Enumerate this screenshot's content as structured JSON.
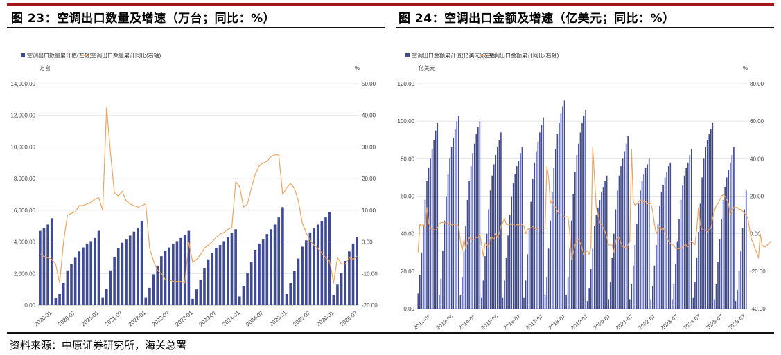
{
  "page": {
    "left_title": "图 23：空调出口数量及增速（万台；同比：%）",
    "right_title": "图 24：空调出口金额及增速（亿美元；同比：%）",
    "source": "资料来源：中原证券研究所，海关总署"
  },
  "colors": {
    "bar": "#3f4a96",
    "line": "#f0a35c",
    "rule": "#a3171b",
    "grid": "#e4e4e4"
  },
  "chart_data": [
    {
      "type": "bar",
      "legend": [
        "空调出口数量累计值(左轴)",
        "空调出口数量累计同比(右轴)"
      ],
      "left_unit": "万台",
      "right_unit": "%",
      "ylim": [
        0,
        14000
      ],
      "y2lim": [
        -20,
        50
      ],
      "left_ticks": [
        "14,000.00",
        "12,000.00",
        "10,000.00",
        "8,000.00",
        "6,000.00",
        "4,000.00",
        "2,000.00",
        "0.00"
      ],
      "right_ticks": [
        "50.00",
        "40.00",
        "30.00",
        "20.00",
        "10.00",
        "0.00",
        "-10.00",
        "-20.00"
      ],
      "x_tick_labels": [
        "2020-01",
        "2020-07",
        "2021-01",
        "2021-07",
        "2022-01",
        "2022-07",
        "2023-01",
        "2023-07",
        "2024-01",
        "2024-07",
        "2025-01",
        "2025-07",
        "2026-01",
        "2026-07"
      ],
      "series": [
        {
          "name": "空调出口数量累计值(左轴)",
          "type": "bar",
          "values": [
            4700,
            4900,
            5100,
            5500,
            450,
            700,
            1400,
            2200,
            2600,
            3000,
            3400,
            3650,
            3900,
            4050,
            4250,
            4700,
            500,
            1050,
            2200,
            3050,
            3600,
            3950,
            4150,
            4400,
            4650,
            4900,
            5300,
            500,
            1100,
            1950,
            2500,
            3100,
            3450,
            3650,
            3900,
            4050,
            4250,
            4450,
            4700,
            400,
            1000,
            1600,
            2350,
            2900,
            3300,
            3600,
            3800,
            4050,
            4300,
            4550,
            4800,
            550,
            1200,
            2050,
            2750,
            3500,
            3900,
            4150,
            4500,
            4800,
            5100,
            5550,
            6200,
            700,
            1400,
            2150,
            2950,
            3700,
            4100,
            4600,
            4850,
            5100,
            5300,
            5550,
            5900,
            650,
            1300,
            2050,
            2800,
            3400,
            3900,
            4300
          ]
        },
        {
          "name": "空调出口数量累计同比(右轴)",
          "type": "line",
          "values": [
            -4,
            -4.5,
            -5,
            -5.5,
            -7,
            -13,
            0,
            8.5,
            9,
            9.5,
            11.5,
            11.5,
            12,
            12.5,
            13.5,
            14,
            10,
            42.5,
            28,
            15.5,
            14.5,
            16,
            13,
            12,
            11.5,
            11,
            11.5,
            12,
            -2,
            -6,
            -9,
            -10,
            -12,
            -12,
            -12.5,
            -12.5,
            -12.5,
            -13,
            0,
            -6.5,
            -5.5,
            -4,
            -2,
            -1,
            0,
            1.5,
            2.5,
            3,
            4,
            4.5,
            19,
            17.5,
            11,
            12,
            17,
            21.5,
            24,
            25,
            25.5,
            27,
            27.5,
            27.5,
            15,
            17,
            18.5,
            17,
            13,
            6,
            3,
            0.5,
            -1,
            -2,
            -3.5,
            -5,
            -6,
            -13,
            -5,
            -7,
            -7,
            -5,
            -5.5,
            -4.5
          ]
        }
      ]
    },
    {
      "type": "bar",
      "legend": [
        "空调出口金额累计值(亿美元)(左轴)",
        "空调出口金额累计同比(右轴)"
      ],
      "left_unit": "亿美元",
      "right_unit": "%",
      "ylim": [
        0,
        120
      ],
      "y2lim": [
        -40,
        80
      ],
      "left_ticks": [
        "120.00",
        "100.00",
        "80.00",
        "60.00",
        "40.00",
        "20.00",
        "0.00"
      ],
      "right_ticks": [
        "80.00",
        "60.00",
        "40.00",
        "20.00",
        "0.00",
        "-20.00",
        "-40.00"
      ],
      "x_tick_labels": [
        "2012-06",
        "2013-06",
        "2014-06",
        "2015-06",
        "2016-07",
        "2017-07",
        "2018-07",
        "2019-07",
        "2020-07",
        "2021-07",
        "2022-07",
        "2023-07",
        "2024-07",
        "2025-07",
        "2026-07"
      ],
      "series": [
        {
          "name": "空调出口金额累计值(亿美元)(左轴)",
          "type": "bar",
          "values": [
            8,
            18,
            30,
            45,
            58,
            68,
            75,
            80,
            85,
            90,
            95,
            99,
            7,
            16,
            31,
            47,
            60,
            72,
            80,
            86,
            91,
            96,
            100,
            103,
            7,
            17,
            31,
            44,
            58,
            68,
            76,
            83,
            88,
            93,
            97,
            100,
            6,
            15,
            28,
            40,
            53,
            63,
            71,
            77,
            82,
            86,
            90,
            94,
            6,
            15,
            27,
            39,
            50,
            60,
            67,
            72,
            76,
            79,
            83,
            86,
            6,
            15,
            29,
            43,
            57,
            69,
            78,
            84,
            89,
            94,
            98,
            102,
            7,
            17,
            32,
            47,
            62,
            75,
            85,
            93,
            99,
            104,
            108,
            111,
            7,
            17,
            32,
            47,
            61,
            73,
            82,
            88,
            94,
            99,
            103,
            106,
            4,
            11,
            21,
            32,
            44,
            50,
            54,
            58,
            62,
            65,
            68,
            71,
            5,
            14,
            27,
            40,
            53,
            63,
            71,
            76,
            80,
            84,
            88,
            92,
            5,
            13,
            23,
            34,
            45,
            56,
            63,
            68,
            72,
            75,
            77,
            80,
            5,
            12,
            23,
            34,
            45,
            55,
            62,
            66,
            70,
            73,
            76,
            78,
            5,
            13,
            24,
            36,
            48,
            58,
            66,
            71,
            75,
            78,
            82,
            85,
            6,
            14,
            27,
            41,
            56,
            70,
            80,
            86,
            90,
            93,
            96,
            99,
            5,
            13,
            25,
            37,
            48,
            58,
            65,
            70,
            74,
            78,
            82,
            86,
            4,
            10,
            20,
            31,
            43,
            53,
            63
          ]
        },
        {
          "name": "空调出口金额累计同比(右轴)",
          "type": "line",
          "values": [
            -10,
            5,
            4,
            5,
            3,
            14,
            6,
            3,
            2,
            2,
            2,
            3,
            5,
            6,
            6,
            6,
            5,
            6,
            4,
            5,
            5,
            5,
            5,
            4,
            -4,
            -9,
            -3,
            -8,
            -5,
            -2,
            -3,
            -3,
            -3,
            -2,
            -2,
            0,
            -6,
            -12,
            -5,
            -6,
            -7,
            -2,
            -2,
            -3,
            0,
            -2,
            0,
            4,
            6,
            8,
            5,
            5,
            5,
            5,
            5,
            4,
            5,
            5,
            4,
            5,
            4,
            0,
            2,
            3,
            3,
            4,
            3,
            2,
            3,
            3,
            3,
            3,
            3,
            36,
            30,
            16,
            18,
            15,
            14,
            12,
            10,
            10,
            10,
            9,
            9,
            9,
            0,
            -14,
            -10,
            -6,
            -4,
            -3,
            -5,
            -8,
            -11,
            -10,
            -9,
            -11,
            -7,
            46,
            30,
            14,
            10,
            6,
            5,
            3,
            1,
            -2,
            -6,
            -6,
            -6,
            -10,
            -4,
            -2,
            -2,
            -5,
            -7,
            -7,
            -8,
            -6,
            -4,
            45,
            17,
            15,
            16,
            17,
            18,
            17,
            17,
            17,
            16,
            16,
            16,
            12,
            5,
            0,
            2,
            4,
            2,
            3,
            0,
            -2,
            -4,
            -5,
            -6,
            -6,
            -8,
            -8,
            -8,
            -8,
            -7,
            -6,
            -6,
            -7,
            -5,
            -4,
            -5,
            -6,
            3,
            14,
            5,
            2,
            2,
            2,
            1,
            2,
            3,
            8,
            12,
            15,
            16,
            18,
            20,
            21,
            20,
            18,
            16,
            10,
            12,
            14,
            14,
            14,
            13,
            13,
            12,
            11,
            10,
            8,
            2,
            -3,
            -5,
            -8,
            -10,
            -13,
            0,
            -6,
            -7,
            -7,
            -6,
            -5,
            -4
          ]
        }
      ]
    }
  ]
}
